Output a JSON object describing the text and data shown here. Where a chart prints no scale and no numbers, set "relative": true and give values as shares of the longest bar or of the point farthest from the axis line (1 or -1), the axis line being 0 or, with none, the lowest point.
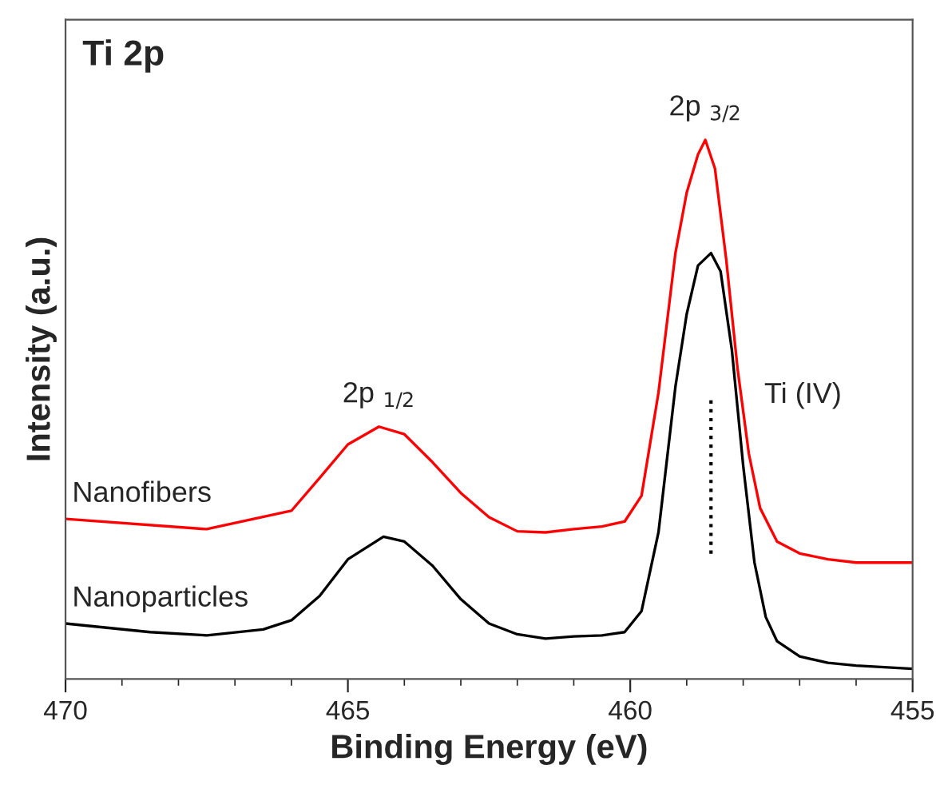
{
  "chart_data": {
    "type": "line",
    "title": "Ti 2p",
    "xlabel": "Binding Energy (eV)",
    "ylabel": "Intensity (a.u.)",
    "relative": true,
    "xlim": [
      470,
      455
    ],
    "xticks": [
      470,
      465,
      460,
      455
    ],
    "tick_labels": "x",
    "grid": false,
    "legend": false,
    "series": [
      {
        "name": "Nanofibers",
        "color": "#ff0000",
        "x": [
          470,
          467.5,
          466,
          465.5,
          465,
          464.45,
          464,
          463.5,
          463,
          462.5,
          462,
          461.5,
          461,
          460.5,
          460.1,
          459.8,
          459.5,
          459.2,
          459,
          458.8,
          458.67,
          458.5,
          458.3,
          458.1,
          457.9,
          457.7,
          457.4,
          457,
          456.5,
          456,
          455
        ],
        "values": [
          0.297,
          0.278,
          0.312,
          0.373,
          0.435,
          0.468,
          0.454,
          0.402,
          0.345,
          0.3,
          0.274,
          0.272,
          0.278,
          0.283,
          0.292,
          0.34,
          0.531,
          0.79,
          0.902,
          0.973,
          1.0,
          0.947,
          0.778,
          0.576,
          0.418,
          0.317,
          0.255,
          0.233,
          0.222,
          0.216,
          0.216
        ]
      },
      {
        "name": "Nanoparticles",
        "color": "#000000",
        "x": [
          470,
          468.5,
          467.5,
          466.5,
          466,
          465.5,
          465,
          464.37,
          464,
          463.5,
          463,
          462.5,
          462,
          461.5,
          461,
          460.5,
          460.1,
          459.8,
          459.5,
          459.2,
          459,
          458.8,
          458.57,
          458.4,
          458.2,
          458,
          457.8,
          457.6,
          457.4,
          457,
          456.5,
          456,
          455
        ],
        "values": [
          0.103,
          0.087,
          0.081,
          0.092,
          0.109,
          0.154,
          0.222,
          0.264,
          0.255,
          0.21,
          0.148,
          0.103,
          0.083,
          0.075,
          0.079,
          0.081,
          0.087,
          0.126,
          0.272,
          0.542,
          0.677,
          0.767,
          0.79,
          0.756,
          0.61,
          0.396,
          0.216,
          0.115,
          0.07,
          0.042,
          0.03,
          0.025,
          0.019
        ]
      }
    ],
    "ref_lines": [
      {
        "axis": "x",
        "value": 458.57,
        "label": "Ti (IV)",
        "color": "#000000",
        "line_style": "dotted"
      }
    ],
    "annotations": [
      {
        "text": "2p $_{3/2}$",
        "x": 458.67,
        "y": 1.0
      },
      {
        "text": "2p $_{1/2}$",
        "x": 464.45,
        "y": 0.468
      }
    ]
  }
}
